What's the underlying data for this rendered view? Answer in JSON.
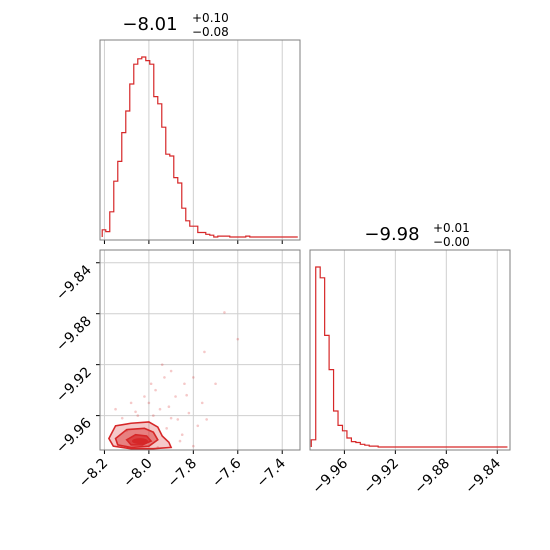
{
  "colors": {
    "accent": "#d62728",
    "grid": "#cfcfcf",
    "frame": "#7f7f7f"
  },
  "chart_data": [
    {
      "type": "histogram",
      "panel": "top-left",
      "title": {
        "main": "−8.01",
        "plus": "+0.10",
        "minus": "−0.08"
      },
      "xlim": [
        -8.22,
        -7.32
      ],
      "x_ticks": [
        -8.2,
        -8.0,
        -7.8,
        -7.6,
        -7.4
      ],
      "grid": true,
      "bin_edges": [
        -8.21,
        -8.194,
        -8.176,
        -8.158,
        -8.14,
        -8.122,
        -8.104,
        -8.086,
        -8.068,
        -8.05,
        -8.032,
        -8.014,
        -7.996,
        -7.978,
        -7.96,
        -7.942,
        -7.924,
        -7.906,
        -7.888,
        -7.87,
        -7.852,
        -7.834,
        -7.816,
        -7.798,
        -7.78,
        -7.762,
        -7.744,
        -7.726,
        -7.708,
        -7.69,
        -7.672,
        -7.654,
        -7.636,
        -7.618,
        -7.6,
        -7.582,
        -7.564,
        -7.546,
        -7.528,
        -7.51,
        -7.492,
        -7.474,
        -7.456,
        -7.438,
        -7.42,
        -7.402,
        -7.384,
        -7.366,
        -7.348,
        -7.33
      ],
      "counts": [
        0.04,
        0.03,
        0.14,
        0.31,
        0.42,
        0.58,
        0.7,
        0.85,
        0.96,
        0.99,
        1.0,
        0.98,
        0.96,
        0.78,
        0.74,
        0.61,
        0.46,
        0.45,
        0.33,
        0.3,
        0.16,
        0.09,
        0.06,
        0.06,
        0.025,
        0.025,
        0.015,
        0.01,
        0.0,
        0.005,
        0.005,
        0.005,
        0.0,
        0.0,
        0.0,
        0.0,
        0.005,
        0.0,
        0.0,
        0.0,
        0.0,
        0.0,
        0.0,
        0.0,
        0.0,
        0.0,
        0.0,
        0.0,
        0.0
      ]
    },
    {
      "type": "histogram",
      "panel": "bottom-right",
      "title": {
        "main": "−9.98",
        "plus": "+0.01",
        "minus": "−0.00"
      },
      "xlim": [
        -9.987,
        -9.83
      ],
      "x_ticks": [
        -9.96,
        -9.92,
        -9.88,
        -9.84
      ],
      "x_tick_labels": [
        "−9.96",
        "−9.92",
        "−9.88",
        "−9.84"
      ],
      "grid": true,
      "bin_edges": [
        -9.986,
        -9.9825,
        -9.979,
        -9.9755,
        -9.972,
        -9.9685,
        -9.965,
        -9.9615,
        -9.958,
        -9.9545,
        -9.951,
        -9.9475,
        -9.944,
        -9.9405,
        -9.937,
        -9.9335,
        -9.93,
        -9.9265,
        -9.923,
        -9.9195,
        -9.916,
        -9.9125,
        -9.909,
        -9.9055,
        -9.902,
        -9.8985,
        -9.895,
        -9.8915,
        -9.888,
        -9.8845,
        -9.881,
        -9.8775,
        -9.874,
        -9.8705,
        -9.867,
        -9.8635,
        -9.86,
        -9.8565,
        -9.853,
        -9.8495,
        -9.846,
        -9.8425,
        -9.839,
        -9.8355,
        -9.832
      ],
      "counts": [
        0.04,
        1.0,
        0.94,
        0.62,
        0.43,
        0.2,
        0.12,
        0.09,
        0.05,
        0.03,
        0.025,
        0.015,
        0.01,
        0.005,
        0.005,
        0.0,
        0.0,
        0.0,
        0.0,
        0.0,
        0.0,
        0.0,
        0.0,
        0.0,
        0.0,
        0.0,
        0.0,
        0.0,
        0.0,
        0.0,
        0.0,
        0.0,
        0.0,
        0.0,
        0.0,
        0.0,
        0.0,
        0.0,
        0.0,
        0.0,
        0.0,
        0.0,
        0.0,
        0.0
      ]
    },
    {
      "type": "scatter-contour",
      "panel": "bottom-left",
      "xlim": [
        -8.22,
        -7.32
      ],
      "ylim": [
        -9.987,
        -9.83
      ],
      "x_ticks": [
        -8.2,
        -8.0,
        -7.8,
        -7.6,
        -7.4
      ],
      "x_tick_labels": [
        "−8.2",
        "−8.0",
        "−7.8",
        "−7.6",
        "−7.4"
      ],
      "y_ticks": [
        -9.84,
        -9.88,
        -9.92,
        -9.96
      ],
      "y_tick_labels": [
        "−9.84",
        "−9.88",
        "−9.92",
        "−9.96"
      ],
      "grid": true,
      "contours": [
        [
          [
            -8.18,
            -9.978
          ],
          [
            -8.15,
            -9.968
          ],
          [
            -8.08,
            -9.966
          ],
          [
            -8.0,
            -9.965
          ],
          [
            -7.96,
            -9.969
          ],
          [
            -7.94,
            -9.976
          ],
          [
            -7.91,
            -9.981
          ],
          [
            -7.9,
            -9.985
          ],
          [
            -7.98,
            -9.986
          ],
          [
            -8.08,
            -9.986
          ],
          [
            -8.16,
            -9.984
          ]
        ],
        [
          [
            -8.15,
            -9.978
          ],
          [
            -8.1,
            -9.971
          ],
          [
            -8.02,
            -9.97
          ],
          [
            -7.98,
            -9.973
          ],
          [
            -7.96,
            -9.979
          ],
          [
            -8.0,
            -9.984
          ],
          [
            -8.08,
            -9.985
          ],
          [
            -8.14,
            -9.983
          ]
        ],
        [
          [
            -8.1,
            -9.979
          ],
          [
            -8.06,
            -9.975
          ],
          [
            -8.01,
            -9.976
          ],
          [
            -7.99,
            -9.98
          ],
          [
            -8.03,
            -9.983
          ],
          [
            -8.08,
            -9.983
          ]
        ]
      ],
      "density_core": {
        "x": -8.04,
        "y": -9.98
      },
      "points": [
        [
          -8.1,
          -9.972
        ],
        [
          -8.05,
          -9.96
        ],
        [
          -7.95,
          -9.955
        ],
        [
          -7.9,
          -9.962
        ],
        [
          -7.85,
          -9.975
        ],
        [
          -7.8,
          -9.984
        ],
        [
          -7.88,
          -9.945
        ],
        [
          -7.97,
          -9.94
        ],
        [
          -7.93,
          -9.93
        ],
        [
          -7.82,
          -9.958
        ],
        [
          -7.78,
          -9.968
        ],
        [
          -8.12,
          -9.962
        ],
        [
          -8.0,
          -9.95
        ],
        [
          -7.92,
          -9.97
        ],
        [
          -7.86,
          -9.98
        ],
        [
          -7.76,
          -9.95
        ],
        [
          -7.84,
          -9.935
        ],
        [
          -7.9,
          -9.925
        ],
        [
          -8.02,
          -9.945
        ],
        [
          -7.98,
          -9.96
        ],
        [
          -7.6,
          -9.9
        ],
        [
          -7.66,
          -9.879
        ],
        [
          -7.75,
          -9.91
        ],
        [
          -7.7,
          -9.935
        ],
        [
          -8.15,
          -9.955
        ],
        [
          -7.96,
          -9.985
        ],
        [
          -7.83,
          -9.944
        ],
        [
          -7.91,
          -9.953
        ],
        [
          -8.06,
          -9.957
        ],
        [
          -7.87,
          -9.963
        ],
        [
          -7.99,
          -9.935
        ],
        [
          -7.8,
          -9.93
        ],
        [
          -7.74,
          -9.963
        ],
        [
          -7.94,
          -9.92
        ],
        [
          -8.08,
          -9.95
        ]
      ]
    }
  ]
}
